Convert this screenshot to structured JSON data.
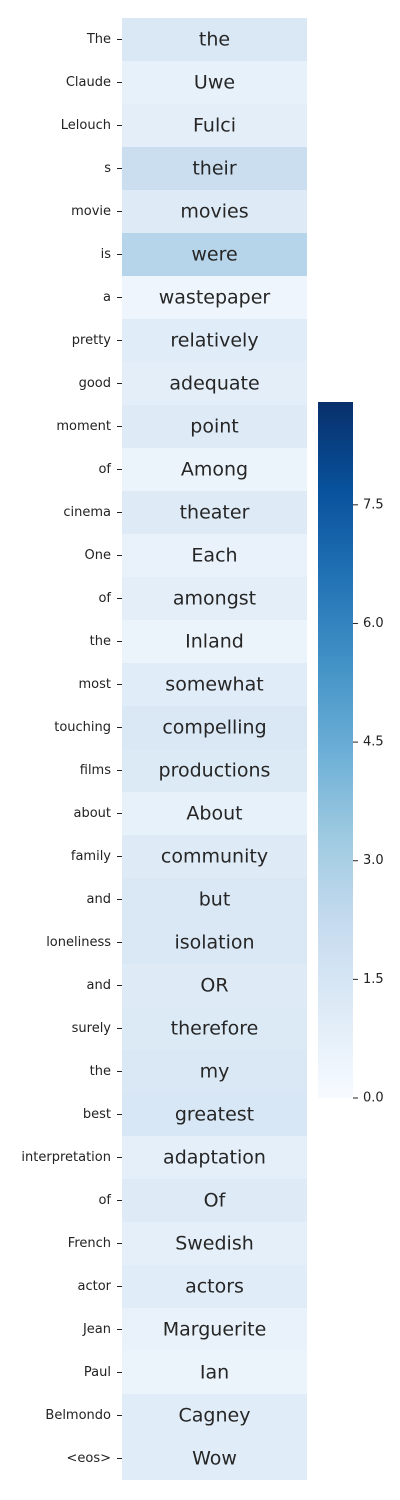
{
  "chart_data": {
    "type": "heatmap",
    "title": "",
    "xlabel": "",
    "ylabel": "",
    "rows": [
      "The",
      "Claude",
      "Lelouch",
      "s",
      "movie",
      "is",
      "a",
      "pretty",
      "good",
      "moment",
      "of",
      "cinema",
      "One",
      "of",
      "the",
      "most",
      "touching",
      "films",
      "about",
      "family",
      "and",
      "loneliness",
      "and",
      "surely",
      "the",
      "best",
      "interpretation",
      "of",
      "French",
      "actor",
      "Jean",
      "Paul",
      "Belmondo",
      "<eos>"
    ],
    "cell_labels": [
      "the",
      "Uwe",
      "Fulci",
      "their",
      "movies",
      "were",
      "wastepaper",
      "relatively",
      "adequate",
      "point",
      "Among",
      "theater",
      "Each",
      "amongst",
      "Inland",
      "somewhat",
      "compelling",
      "productions",
      "About",
      "community",
      "but",
      "isolation",
      "OR",
      "therefore",
      "my",
      "greatest",
      "adaptation",
      "Of",
      "Swedish",
      "actors",
      "Marguerite",
      "Ian",
      "Cagney",
      "Wow"
    ],
    "values": [
      1.3,
      0.7,
      0.9,
      2.0,
      1.1,
      2.6,
      0.4,
      1.0,
      0.9,
      1.1,
      0.5,
      1.1,
      0.6,
      0.9,
      0.5,
      1.0,
      1.3,
      1.2,
      0.7,
      1.1,
      1.3,
      1.3,
      1.1,
      1.2,
      1.3,
      1.4,
      0.8,
      1.1,
      0.8,
      1.0,
      0.6,
      0.5,
      1.0,
      1.0
    ],
    "colormap": "Blues",
    "vmin": 0.0,
    "vmax": 8.8,
    "colorbar_ticks": [
      0.0,
      1.5,
      3.0,
      4.5,
      6.0,
      7.5
    ],
    "colorbar_tick_labels": [
      "0.0",
      "1.5",
      "3.0",
      "4.5",
      "6.0",
      "7.5"
    ]
  }
}
